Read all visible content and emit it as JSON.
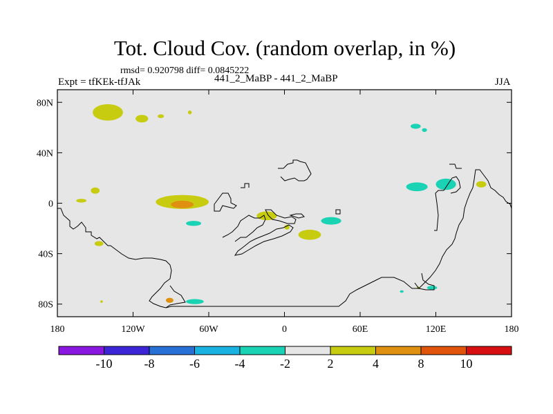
{
  "title": "Tot. Cloud Cov. (random overlap, in %)",
  "stats_text": "rmsd= 0.920798 diff= 0.0845222",
  "left_label": "Expt = tfKEk-tfJAk",
  "center_label": "441_2_MaBP - 441_2_MaBP",
  "right_label": "JJA",
  "chart_data": {
    "type": "heatmap",
    "projection": "cylindrical equidistant",
    "xlim": [
      -180,
      180
    ],
    "ylim": [
      -90,
      90
    ],
    "x_ticks": [
      -180,
      -120,
      -60,
      0,
      60,
      120,
      180
    ],
    "x_tick_labels": [
      "180",
      "120W",
      "60W",
      "0",
      "60E",
      "120E",
      "180"
    ],
    "y_ticks": [
      80,
      40,
      0,
      -40,
      -80
    ],
    "y_tick_labels": [
      "80N",
      "40N",
      "0",
      "40S",
      "80S"
    ],
    "background_color": "#e6e6e6",
    "colorbar": {
      "levels": [
        -10,
        -8,
        -6,
        -4,
        -2,
        2,
        4,
        8,
        10
      ],
      "level_labels": [
        "-10",
        "-8",
        "-6",
        "-4",
        "-2",
        "2",
        "4",
        "8",
        "10"
      ],
      "colors": [
        "#8a17e0",
        "#3b25d6",
        "#2670d6",
        "#1ab2e0",
        "#1ad2b4",
        "#e6e6e6",
        "#c8cc10",
        "#df9010",
        "#e0540c",
        "#d80f10"
      ]
    },
    "anomalies": [
      {
        "lon": -140,
        "lat": 72,
        "w": 24,
        "h": 13,
        "value": 3
      },
      {
        "lon": -113,
        "lat": 67,
        "w": 10,
        "h": 6,
        "value": 3
      },
      {
        "lon": -98,
        "lat": 69,
        "w": 5,
        "h": 3,
        "value": 3
      },
      {
        "lon": -75,
        "lat": 72,
        "w": 3,
        "h": 3,
        "value": 3
      },
      {
        "lon": -150,
        "lat": 10,
        "w": 7,
        "h": 5,
        "value": 3
      },
      {
        "lon": -161,
        "lat": 2,
        "w": 8,
        "h": 3,
        "value": 3
      },
      {
        "lon": -81,
        "lat": 1,
        "w": 42,
        "h": 11,
        "value": 3
      },
      {
        "lon": -81,
        "lat": -1,
        "w": 18,
        "h": 6,
        "value": 5
      },
      {
        "lon": -72,
        "lat": -16,
        "w": 12,
        "h": 4,
        "value": -3
      },
      {
        "lon": -147,
        "lat": -32,
        "w": 7,
        "h": 4,
        "value": 3
      },
      {
        "lon": -14,
        "lat": -10,
        "w": 16,
        "h": 7,
        "value": 3
      },
      {
        "lon": 2,
        "lat": -19,
        "w": 4,
        "h": 4,
        "value": 3
      },
      {
        "lon": 20,
        "lat": -25,
        "w": 18,
        "h": 8,
        "value": 3
      },
      {
        "lon": 37,
        "lat": -14,
        "w": 16,
        "h": 6,
        "value": -3
      },
      {
        "lon": 104,
        "lat": 61,
        "w": 8,
        "h": 4,
        "value": -3
      },
      {
        "lon": 111,
        "lat": 58,
        "w": 4,
        "h": 3,
        "value": -3
      },
      {
        "lon": 105,
        "lat": 13,
        "w": 17,
        "h": 7,
        "value": -3
      },
      {
        "lon": 128,
        "lat": 15,
        "w": 16,
        "h": 9,
        "value": -3
      },
      {
        "lon": 156,
        "lat": 15,
        "w": 8,
        "h": 5,
        "value": 3
      },
      {
        "lon": -91,
        "lat": -77,
        "w": 6,
        "h": 4,
        "value": 5
      },
      {
        "lon": -71,
        "lat": -78,
        "w": 14,
        "h": 4,
        "value": -3
      },
      {
        "lon": 117,
        "lat": -67,
        "w": 8,
        "h": 3,
        "value": -3
      },
      {
        "lon": 106,
        "lat": -67,
        "w": 2,
        "h": 2,
        "value": 3
      },
      {
        "lon": 93,
        "lat": -70,
        "w": 3,
        "h": 2,
        "value": -3
      },
      {
        "lon": -145,
        "lat": -78,
        "w": 2,
        "h": 2,
        "value": 3
      }
    ]
  }
}
